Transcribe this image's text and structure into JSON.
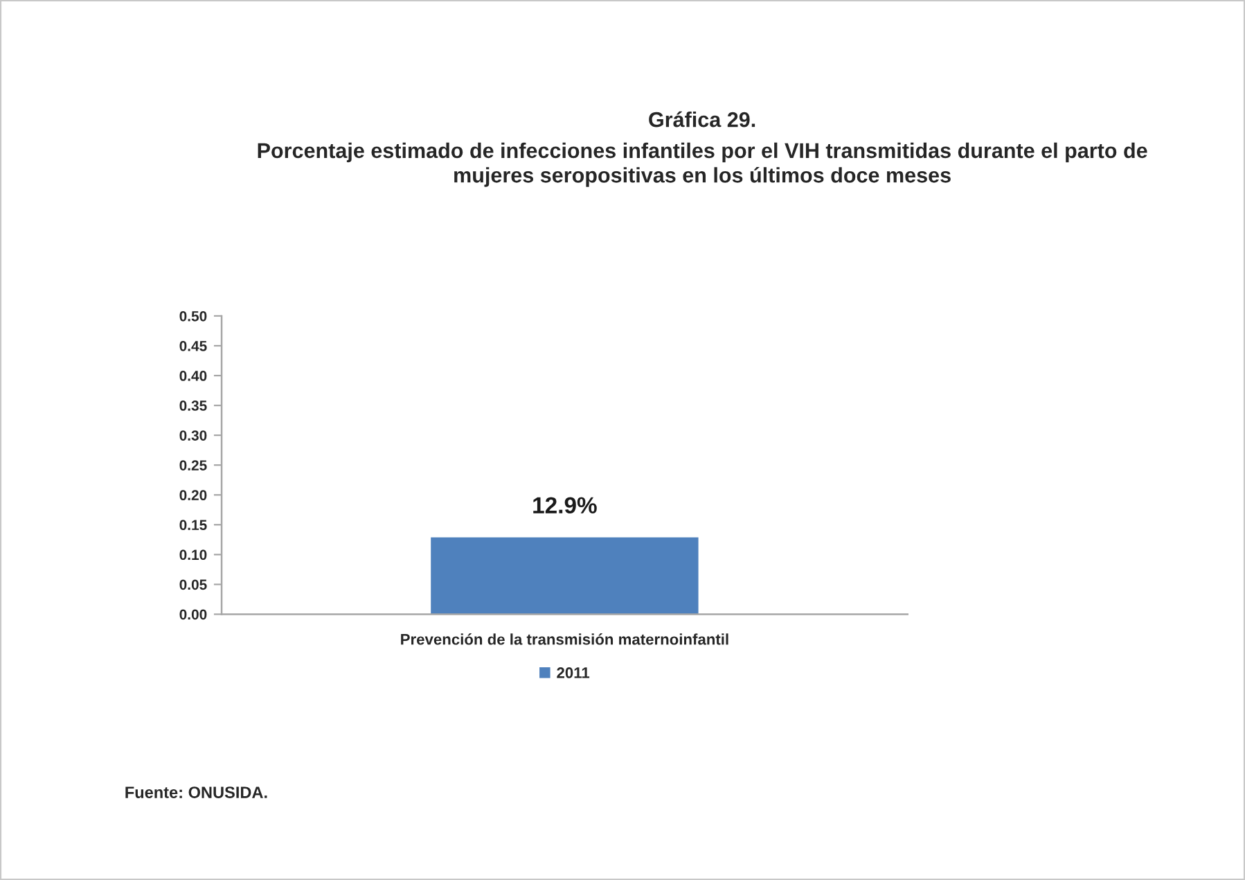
{
  "chart_data": {
    "type": "bar",
    "title": "Gráfica 29.",
    "subtitle": "Porcentaje estimado de infecciones infantiles por el VIH transmitidas durante el parto de mujeres seropositivas en los últimos doce meses",
    "categories": [
      "Prevención de la transmisión maternoinfantil"
    ],
    "series": [
      {
        "name": "2011",
        "color": "#4f81bd",
        "values": [
          0.129
        ],
        "value_labels": [
          "12.9%"
        ]
      }
    ],
    "ylim": [
      0,
      0.5
    ],
    "yticks": [
      {
        "value": 0,
        "label": "0.00"
      },
      0.05,
      {
        "value": 0.1,
        "label": "0.10"
      },
      0.15,
      {
        "value": 0.2,
        "label": "0.20"
      },
      0.25,
      {
        "value": 0.3,
        "label": "0.30"
      },
      0.35,
      {
        "value": 0.4,
        "label": "0.40"
      },
      0.45,
      {
        "value": 0.5,
        "label": "0.50"
      }
    ],
    "legend": "bottom",
    "annotations": [
      "Fuente: ONUSIDA."
    ]
  }
}
